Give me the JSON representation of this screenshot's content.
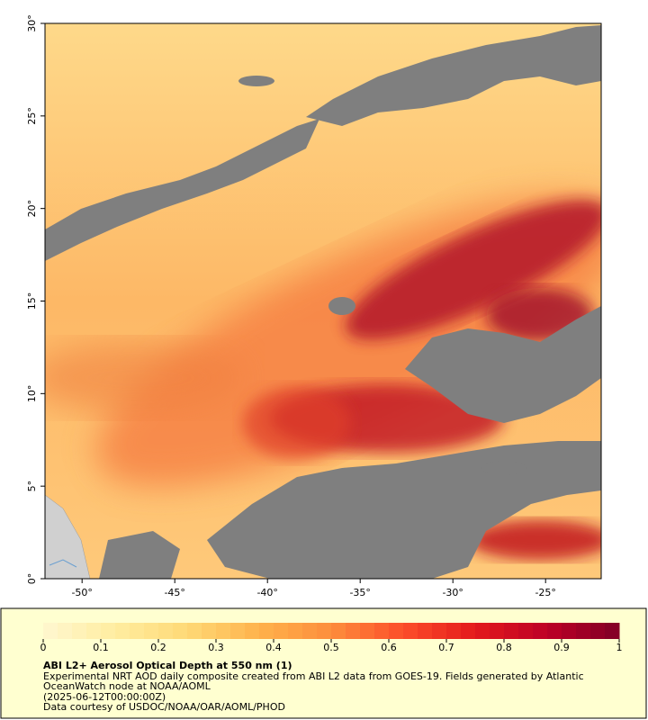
{
  "map": {
    "xlim": [
      -52,
      -22
    ],
    "ylim": [
      0,
      30
    ],
    "xticks": [
      {
        "value": -50,
        "label": "-50°"
      },
      {
        "value": -45,
        "label": "-45°"
      },
      {
        "value": -40,
        "label": "-40°"
      },
      {
        "value": -35,
        "label": "-35°"
      },
      {
        "value": -30,
        "label": "-30°"
      },
      {
        "value": -25,
        "label": "-25°"
      }
    ],
    "yticks": [
      {
        "value": 0,
        "label": "0°"
      },
      {
        "value": 5,
        "label": "5°"
      },
      {
        "value": 10,
        "label": "10°"
      },
      {
        "value": 15,
        "label": "15°"
      },
      {
        "value": 20,
        "label": "20°"
      },
      {
        "value": 25,
        "label": "25°"
      },
      {
        "value": 30,
        "label": "30°"
      }
    ]
  },
  "colorbar": {
    "lim": [
      0,
      1
    ],
    "ticks": [
      0,
      0.1,
      0.2,
      0.3,
      0.4,
      0.5,
      0.6,
      0.7,
      0.8,
      0.9,
      1
    ],
    "colors": [
      "#fff7d0",
      "#ffeda0",
      "#fed976",
      "#feb24c",
      "#fd8d3c",
      "#fc4e2a",
      "#e31a1c",
      "#bd0026",
      "#800026"
    ]
  },
  "caption": {
    "title": "ABI L2+ Aerosol Optical Depth at 550 nm (1)",
    "lines": [
      "Experimental NRT AOD daily composite created from ABI L2 data from GOES-19. Fields generated by Atlantic",
      "OceanWatch node at NOAA/AOML",
      "(2025-06-12T00:00:00Z)",
      "Data courtesy of USDOC/NOAA/OAR/AOML/PHOD"
    ]
  }
}
